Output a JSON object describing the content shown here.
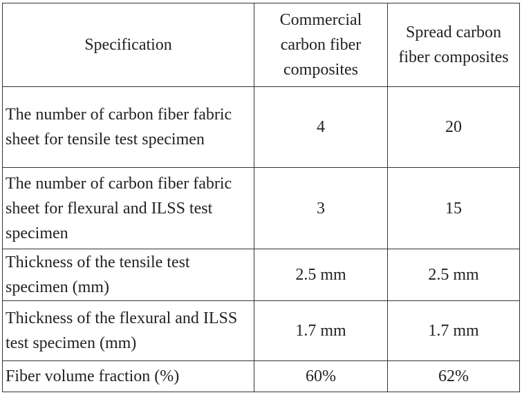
{
  "table": {
    "header": [
      "Specification",
      "Commercial carbon fiber composites",
      "Spread carbon fiber composites"
    ],
    "rows": [
      [
        "The number of carbon fiber fabric sheet for tensile test specimen",
        "4",
        "20"
      ],
      [
        "The number of carbon fiber fabric sheet for flexural and ILSS test specimen",
        "3",
        "15"
      ],
      [
        "Thickness of the tensile test specimen (mm)",
        "2.5 mm",
        "2.5 mm"
      ],
      [
        "Thickness of the flexural and ILSS test specimen (mm)",
        "1.7 mm",
        "1.7 mm"
      ],
      [
        "Fiber volume fraction (%)",
        "60%",
        "62%"
      ]
    ]
  }
}
